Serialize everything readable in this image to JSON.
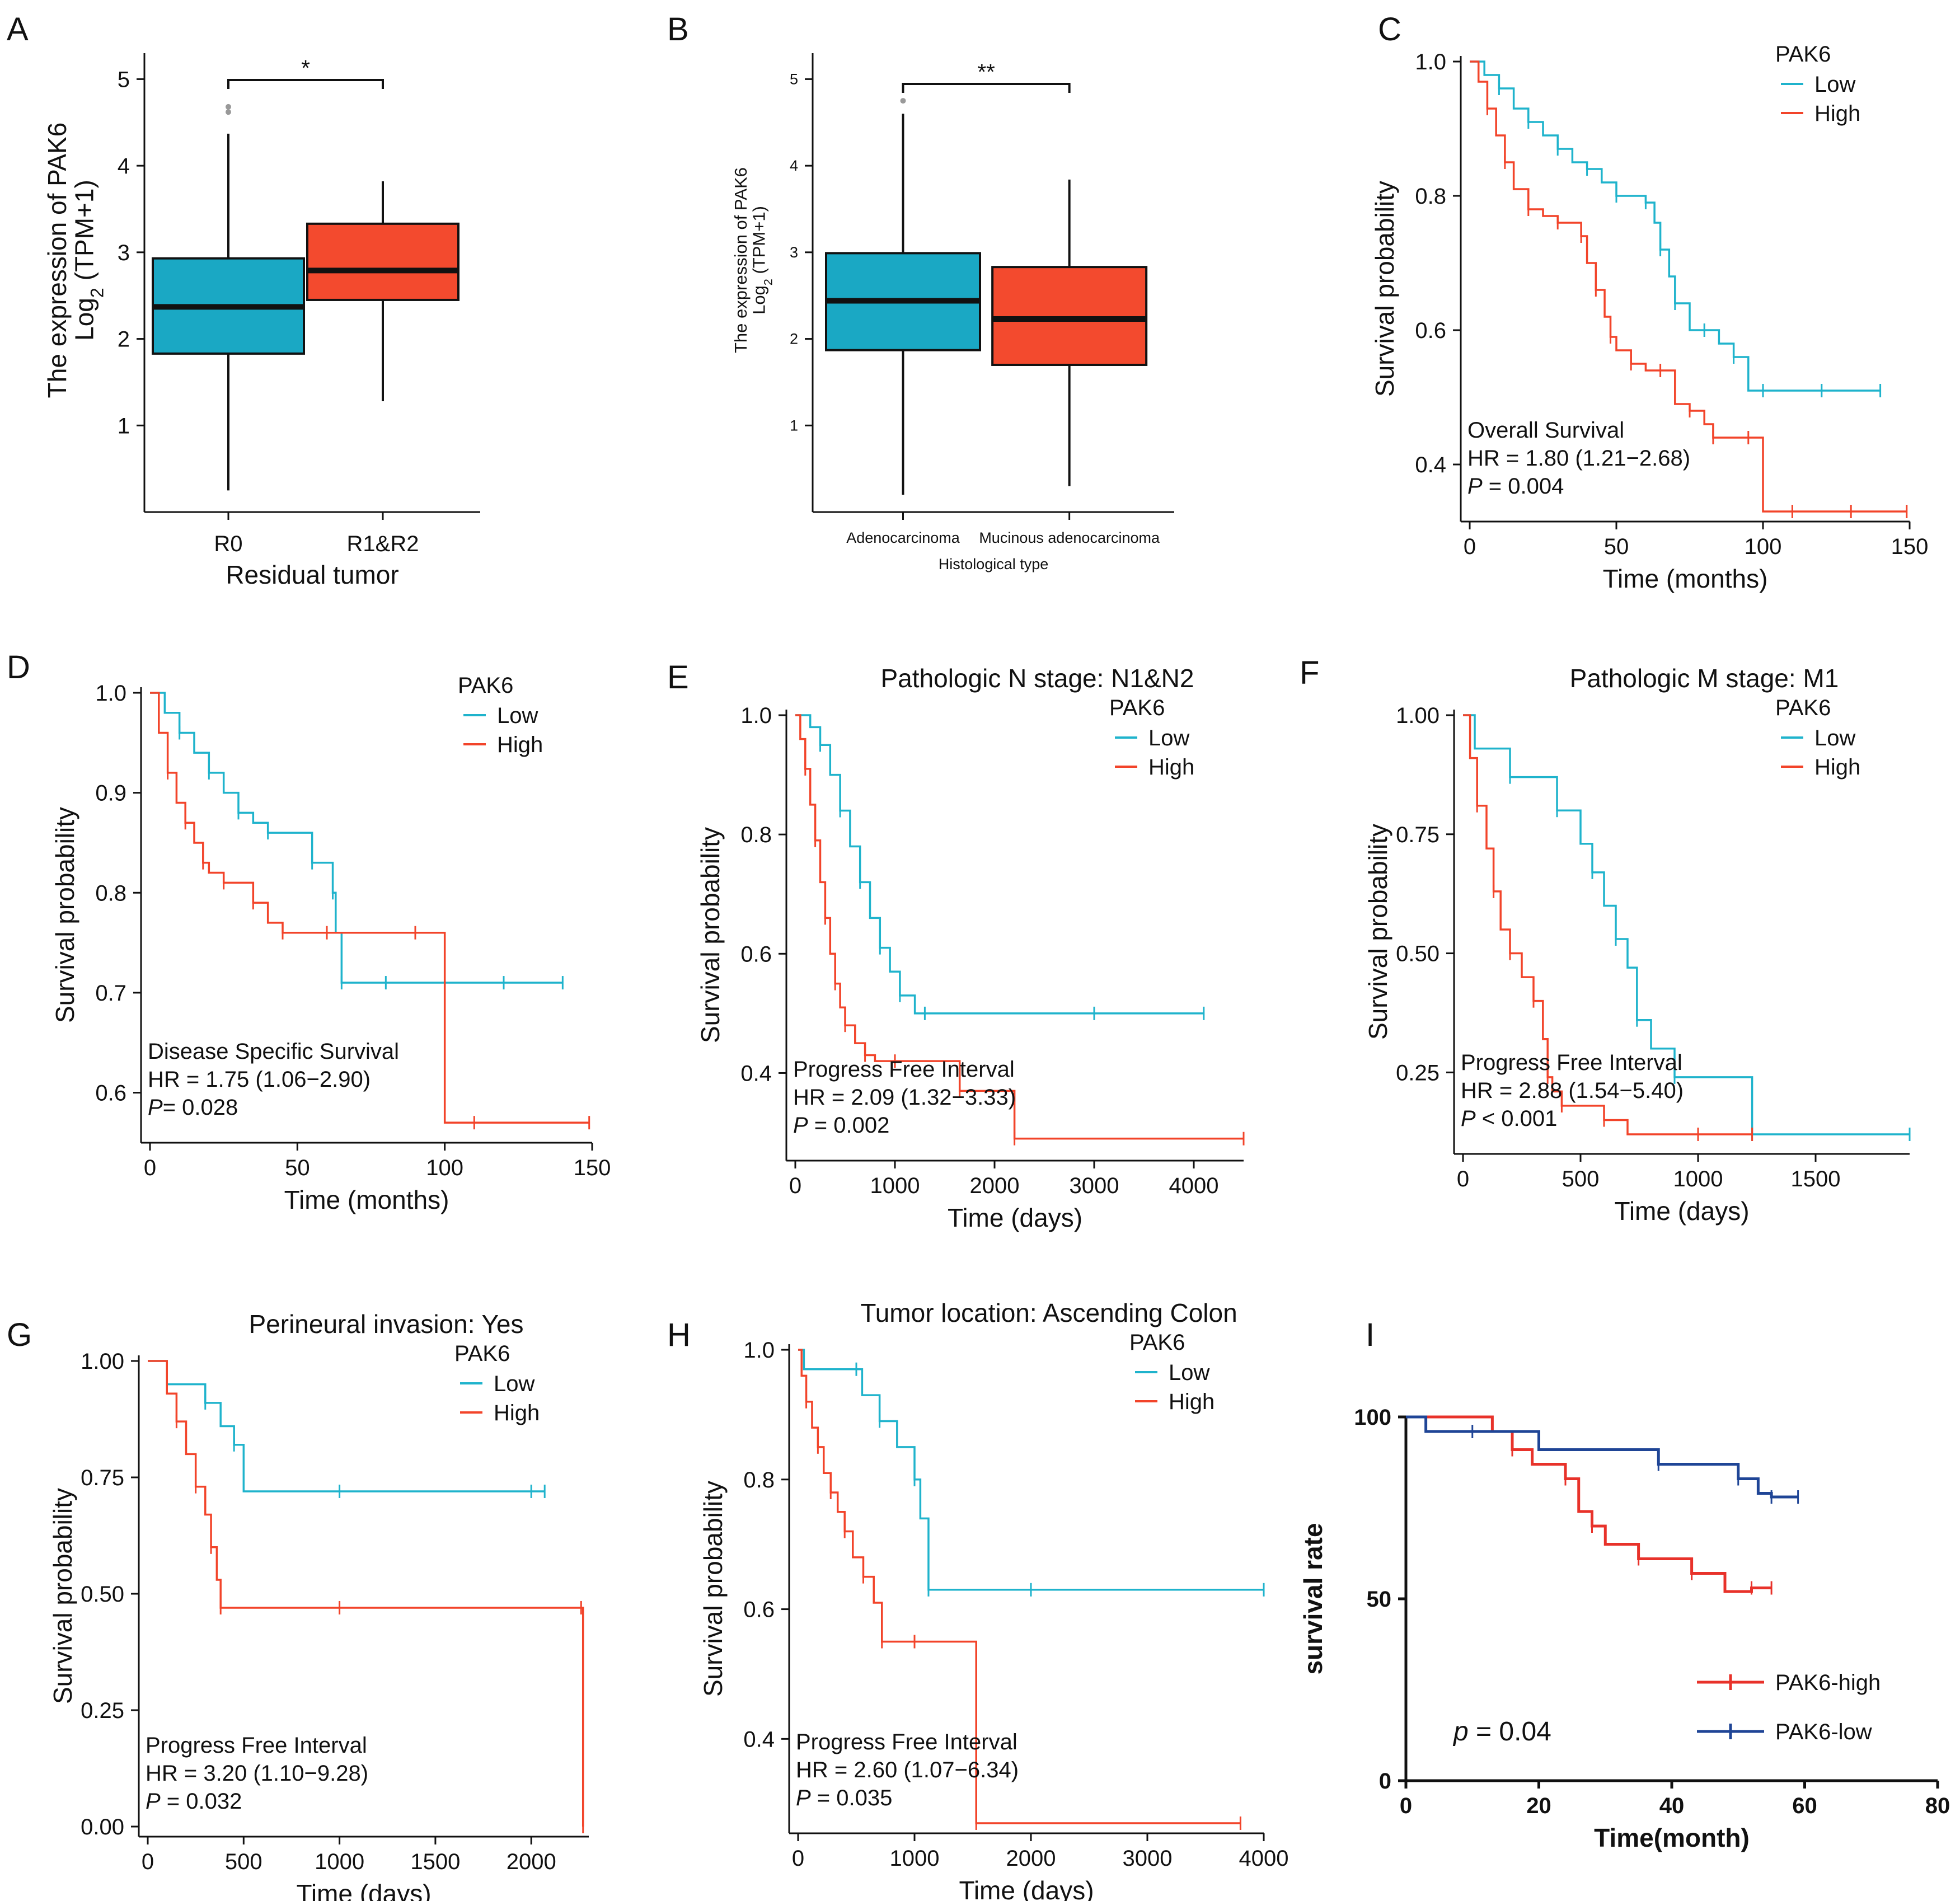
{
  "colors": {
    "low": "#1fb3cc",
    "high": "#f2442a",
    "box_low": "#1aa8c4",
    "box_high": "#f34a2e",
    "i_high": "#e8322a",
    "i_low": "#1f4596"
  },
  "figure_title": "Multi-panel figure: PAK6 expression and survival analyses",
  "chart_data": [
    {
      "id": "A",
      "type": "box",
      "ylabel_top": "The expression of PAK6",
      "ylabel_bottom_pre": "Log",
      "ylabel_bottom_sub": "2",
      "ylabel_bottom_post": " (TPM+1)",
      "xlabel": "Residual tumor",
      "ylim": [
        0,
        5
      ],
      "yticks": [
        "1",
        "2",
        "3",
        "4",
        "5"
      ],
      "categories": [
        "R0",
        "R1&R2"
      ],
      "boxes": [
        {
          "name": "R0",
          "min": 0.25,
          "q1": 1.83,
          "median": 2.37,
          "q3": 2.93,
          "max": 4.37,
          "outliers": [
            4.62,
            4.68
          ]
        },
        {
          "name": "R1&R2",
          "min": 1.28,
          "q1": 2.45,
          "median": 2.79,
          "q3": 3.33,
          "max": 3.82,
          "outliers": []
        }
      ],
      "significance": "*"
    },
    {
      "id": "B",
      "type": "box",
      "ylabel_top": "The expression of PAK6",
      "ylabel_bottom_pre": "Log",
      "ylabel_bottom_sub": "2",
      "ylabel_bottom_post": " (TPM+1)",
      "xlabel": "Histological type",
      "ylim": [
        0,
        5
      ],
      "yticks": [
        "1",
        "2",
        "3",
        "4",
        "5"
      ],
      "categories": [
        "Adenocarcinoma",
        "Mucinous adenocarcinoma"
      ],
      "boxes": [
        {
          "name": "Adenocarcinoma",
          "min": 0.2,
          "q1": 1.87,
          "median": 2.44,
          "q3": 2.99,
          "max": 4.6,
          "outliers": [
            4.75
          ]
        },
        {
          "name": "Mucinous adenocarcinoma",
          "min": 0.3,
          "q1": 1.7,
          "median": 2.23,
          "q3": 2.83,
          "max": 3.84,
          "outliers": []
        }
      ],
      "significance": "**"
    },
    {
      "id": "C",
      "type": "line",
      "title": "",
      "xlabel": "Time (months)",
      "ylabel": "Survival probability",
      "xlim": [
        0,
        150
      ],
      "ylim": [
        0.33,
        1.0
      ],
      "xticks": [
        "0",
        "50",
        "100",
        "150"
      ],
      "yticks": [
        "0.4",
        "0.6",
        "0.8",
        "1.0"
      ],
      "legend_title": "PAK6",
      "legend": [
        "Low",
        "High"
      ],
      "annotation": [
        "Overall Survival",
        "HR = 1.80 (1.21−2.68)"
      ],
      "pvalue_label": "P",
      "pvalue_text": " = 0.004",
      "series": [
        {
          "name": "Low",
          "x": [
            0,
            5,
            10,
            15,
            20,
            25,
            30,
            35,
            40,
            45,
            50,
            55,
            60,
            63,
            65,
            68,
            70,
            75,
            80,
            85,
            90,
            95,
            100,
            110,
            120,
            130,
            140
          ],
          "y": [
            1.0,
            0.98,
            0.96,
            0.93,
            0.91,
            0.89,
            0.87,
            0.85,
            0.84,
            0.82,
            0.8,
            0.8,
            0.79,
            0.76,
            0.72,
            0.68,
            0.64,
            0.6,
            0.6,
            0.58,
            0.56,
            0.51,
            0.51,
            0.51,
            0.51,
            0.51,
            0.51
          ]
        },
        {
          "name": "High",
          "x": [
            0,
            3,
            6,
            9,
            12,
            15,
            20,
            25,
            30,
            35,
            38,
            40,
            43,
            46,
            48,
            50,
            55,
            60,
            65,
            70,
            75,
            80,
            83,
            85,
            95,
            100,
            110,
            120,
            130,
            149
          ],
          "y": [
            1.0,
            0.97,
            0.93,
            0.89,
            0.85,
            0.81,
            0.78,
            0.77,
            0.76,
            0.76,
            0.74,
            0.7,
            0.66,
            0.62,
            0.59,
            0.57,
            0.55,
            0.54,
            0.54,
            0.49,
            0.48,
            0.46,
            0.44,
            0.44,
            0.44,
            0.33,
            0.33,
            0.33,
            0.33,
            0.33
          ]
        }
      ]
    },
    {
      "id": "D",
      "type": "line",
      "title": "",
      "xlabel": "Time (months)",
      "ylabel": "Survival probability",
      "xlim": [
        0,
        150
      ],
      "ylim": [
        0.56,
        1.0
      ],
      "xticks": [
        "0",
        "50",
        "100",
        "150"
      ],
      "yticks": [
        "0.6",
        "0.7",
        "0.8",
        "0.9",
        "1.0"
      ],
      "legend_title": "PAK6",
      "legend": [
        "Low",
        "High"
      ],
      "annotation": [
        "Disease Specific Survival",
        "HR = 1.75 (1.06−2.90) "
      ],
      "pvalue_label": "P",
      "pvalue_text": "= 0.028",
      "series": [
        {
          "name": "Low",
          "x": [
            0,
            5,
            10,
            15,
            20,
            25,
            30,
            35,
            40,
            50,
            55,
            60,
            62,
            63,
            65,
            70,
            80,
            100,
            120,
            140
          ],
          "y": [
            1.0,
            0.98,
            0.96,
            0.94,
            0.92,
            0.9,
            0.88,
            0.87,
            0.86,
            0.86,
            0.83,
            0.83,
            0.8,
            0.76,
            0.71,
            0.71,
            0.71,
            0.71,
            0.71,
            0.71
          ]
        },
        {
          "name": "High",
          "x": [
            0,
            3,
            6,
            9,
            12,
            15,
            18,
            20,
            25,
            30,
            35,
            40,
            45,
            50,
            60,
            70,
            90,
            100,
            110,
            130,
            149
          ],
          "y": [
            1.0,
            0.96,
            0.92,
            0.89,
            0.87,
            0.85,
            0.83,
            0.82,
            0.81,
            0.81,
            0.79,
            0.77,
            0.76,
            0.76,
            0.76,
            0.76,
            0.76,
            0.57,
            0.57,
            0.57,
            0.57
          ]
        }
      ]
    },
    {
      "id": "E",
      "type": "line",
      "title": "Pathologic N stage: N1&N2",
      "xlabel": "Time (days)",
      "ylabel": "Survival probability",
      "xlim": [
        0,
        4500
      ],
      "ylim": [
        0.27,
        1.0
      ],
      "xticks": [
        "0",
        "1000",
        "2000",
        "3000",
        "4000"
      ],
      "yticks": [
        "0.4",
        "0.6",
        "0.8",
        "1.0"
      ],
      "legend_title": "PAK6",
      "legend": [
        "Low",
        "High"
      ],
      "annotation": [
        "Progress Free Interval",
        "HR = 2.09 (1.32−3.33)"
      ],
      "pvalue_label": "P",
      "pvalue_text": " = 0.002",
      "series": [
        {
          "name": "Low",
          "x": [
            0,
            150,
            250,
            350,
            450,
            550,
            650,
            750,
            850,
            950,
            1050,
            1200,
            1300,
            2000,
            3000,
            4100
          ],
          "y": [
            1.0,
            0.98,
            0.95,
            0.9,
            0.84,
            0.78,
            0.72,
            0.66,
            0.61,
            0.57,
            0.53,
            0.5,
            0.5,
            0.5,
            0.5,
            0.5
          ]
        },
        {
          "name": "High",
          "x": [
            0,
            50,
            100,
            150,
            200,
            250,
            300,
            350,
            400,
            450,
            500,
            600,
            700,
            800,
            1000,
            1200,
            1650,
            2000,
            2200,
            3000,
            4500
          ],
          "y": [
            1.0,
            0.96,
            0.91,
            0.85,
            0.79,
            0.72,
            0.66,
            0.6,
            0.55,
            0.51,
            0.48,
            0.45,
            0.43,
            0.42,
            0.42,
            0.42,
            0.37,
            0.37,
            0.29,
            0.29,
            0.29
          ]
        }
      ]
    },
    {
      "id": "F",
      "type": "line",
      "title": "Pathologic M stage: M1",
      "xlabel": "Time (days)",
      "ylabel": "Survival probability",
      "xlim": [
        0,
        1900
      ],
      "ylim": [
        0.1,
        1.0
      ],
      "xticks": [
        "0",
        "500",
        "1000",
        "1500"
      ],
      "yticks": [
        "0.25",
        "0.50",
        "0.75",
        "1.00"
      ],
      "legend_title": "PAK6",
      "legend": [
        "Low",
        "High"
      ],
      "annotation": [
        "Progress Free Interval",
        "HR = 2.88 (1.54−5.40)"
      ],
      "pvalue_label": "P",
      "pvalue_text": " < 0.001",
      "series": [
        {
          "name": "Low",
          "x": [
            0,
            50,
            200,
            350,
            400,
            500,
            550,
            600,
            650,
            700,
            740,
            800,
            900,
            1000,
            1230,
            1300,
            1900
          ],
          "y": [
            1.0,
            0.93,
            0.87,
            0.87,
            0.8,
            0.73,
            0.67,
            0.6,
            0.53,
            0.47,
            0.36,
            0.3,
            0.24,
            0.24,
            0.12,
            0.12,
            0.12
          ]
        },
        {
          "name": "High",
          "x": [
            0,
            30,
            60,
            100,
            130,
            160,
            200,
            250,
            300,
            340,
            360,
            380,
            420,
            500,
            600,
            700,
            1000,
            1230
          ],
          "y": [
            1.0,
            0.91,
            0.81,
            0.72,
            0.63,
            0.55,
            0.5,
            0.45,
            0.4,
            0.32,
            0.24,
            0.21,
            0.18,
            0.18,
            0.15,
            0.12,
            0.12,
            0.12
          ]
        }
      ]
    },
    {
      "id": "G",
      "type": "line",
      "title": "Perineural invasion: Yes",
      "xlabel": "Time (days)",
      "ylabel": "Survival probability",
      "xlim": [
        0,
        2300
      ],
      "ylim": [
        0,
        1.0
      ],
      "xticks": [
        "0",
        "500",
        "1000",
        "1500",
        "2000"
      ],
      "yticks": [
        "0.00",
        "0.25",
        "0.50",
        "0.75",
        "1.00"
      ],
      "legend_title": "PAK6",
      "legend": [
        "Low",
        "High"
      ],
      "annotation": [
        "Progress Free Interval",
        "HR = 3.20 (1.10−9.28)"
      ],
      "pvalue_label": "P",
      "pvalue_text": " = 0.032",
      "series": [
        {
          "name": "Low",
          "x": [
            0,
            100,
            300,
            380,
            450,
            500,
            1000,
            1500,
            2000,
            2070
          ],
          "y": [
            1.0,
            0.95,
            0.91,
            0.86,
            0.82,
            0.72,
            0.72,
            0.72,
            0.72,
            0.72
          ]
        },
        {
          "name": "High",
          "x": [
            0,
            100,
            150,
            200,
            250,
            300,
            330,
            360,
            380,
            500,
            1000,
            2000,
            2260,
            2270
          ],
          "y": [
            1.0,
            0.93,
            0.87,
            0.8,
            0.73,
            0.67,
            0.6,
            0.53,
            0.47,
            0.47,
            0.47,
            0.47,
            0.47,
            0.0
          ]
        }
      ]
    },
    {
      "id": "H",
      "type": "line",
      "title": "Tumor location: Ascending Colon",
      "xlabel": "Time (days)",
      "ylabel": "Survival probability",
      "xlim": [
        0,
        4000
      ],
      "ylim": [
        0.27,
        1.0
      ],
      "xticks": [
        "0",
        "1000",
        "2000",
        "3000",
        "4000"
      ],
      "yticks": [
        "0.4",
        "0.6",
        "0.8",
        "1.0"
      ],
      "legend_title": "PAK6",
      "legend": [
        "Low",
        "High"
      ],
      "annotation": [
        "Progress Free Interval",
        "HR = 2.60 (1.07−6.34)"
      ],
      "pvalue_label": "P",
      "pvalue_text": " = 0.035",
      "series": [
        {
          "name": "Low",
          "x": [
            0,
            50,
            500,
            550,
            700,
            850,
            1000,
            1050,
            1120,
            1300,
            2000,
            4000
          ],
          "y": [
            1.0,
            0.97,
            0.97,
            0.93,
            0.89,
            0.85,
            0.8,
            0.74,
            0.63,
            0.63,
            0.63,
            0.63
          ]
        },
        {
          "name": "High",
          "x": [
            0,
            30,
            70,
            120,
            170,
            220,
            280,
            340,
            400,
            470,
            560,
            650,
            720,
            800,
            1000,
            1500,
            1530,
            2000,
            3800
          ],
          "y": [
            1.0,
            0.96,
            0.92,
            0.88,
            0.85,
            0.81,
            0.78,
            0.75,
            0.72,
            0.68,
            0.65,
            0.61,
            0.55,
            0.55,
            0.55,
            0.55,
            0.27,
            0.27,
            0.27
          ]
        }
      ]
    },
    {
      "id": "I",
      "type": "line",
      "title": "",
      "xlabel": "Time(month)",
      "ylabel": "survival rate",
      "xlim": [
        0,
        80
      ],
      "ylim": [
        0,
        100
      ],
      "xticks": [
        "0",
        "20",
        "40",
        "60",
        "80"
      ],
      "yticks": [
        "0",
        "50",
        "100"
      ],
      "legend": [
        "PAK6-high",
        "PAK6-low"
      ],
      "pvalue_label": "p",
      "pvalue_text": " = 0.04",
      "series": [
        {
          "name": "PAK6-high",
          "x": [
            0,
            13,
            16,
            19,
            24,
            26,
            28,
            30,
            35,
            40,
            43,
            48,
            52,
            55
          ],
          "y": [
            100,
            96,
            91,
            87,
            83,
            74,
            70,
            65,
            61,
            61,
            57,
            52,
            53,
            53
          ]
        },
        {
          "name": "PAK6-low",
          "x": [
            0,
            3,
            10,
            20,
            38,
            45,
            50,
            53,
            55,
            59
          ],
          "y": [
            100,
            96,
            96,
            91,
            87,
            87,
            83,
            79,
            78,
            78
          ]
        }
      ]
    }
  ]
}
